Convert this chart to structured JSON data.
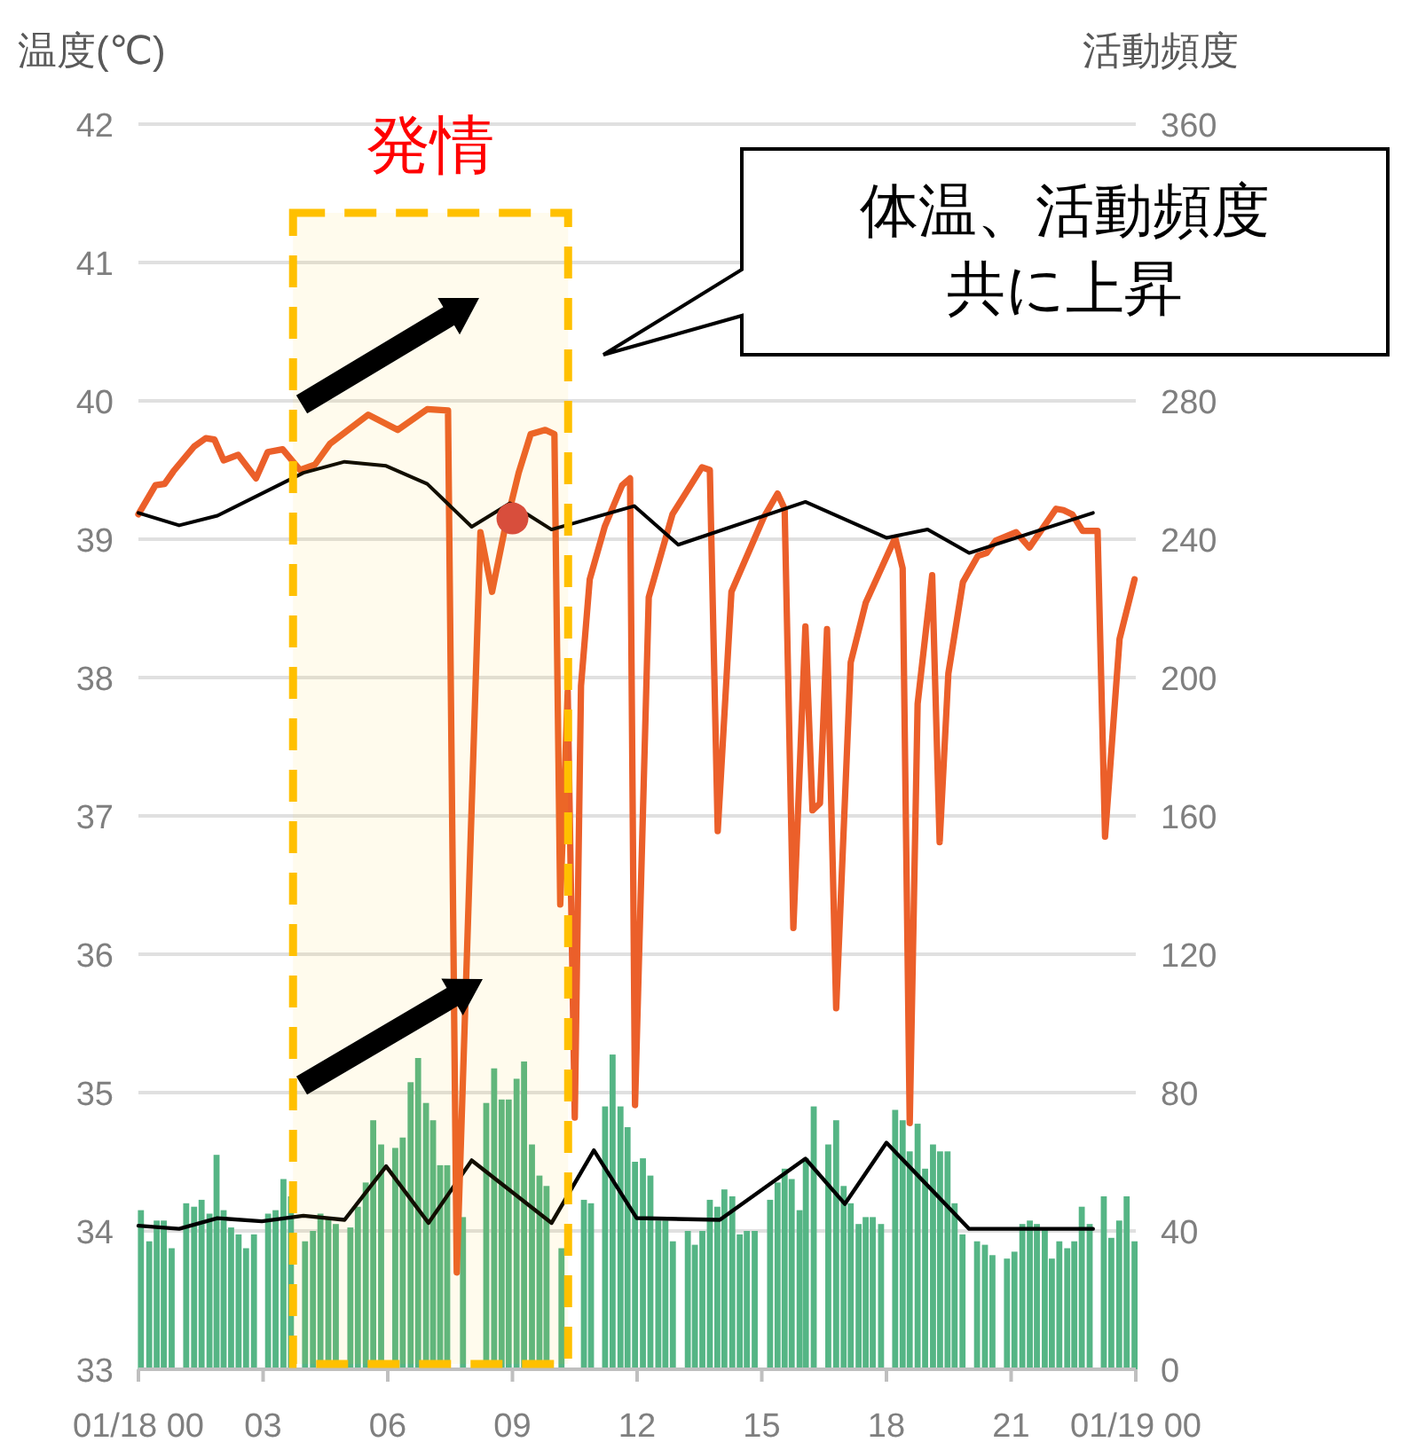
{
  "chart_data": {
    "type": "line",
    "ylabel": "温度(℃)",
    "y2label": "活動頻度",
    "xlim": [
      0,
      24
    ],
    "xticks": [
      {
        "value": 0,
        "label": "01/18 00"
      },
      {
        "value": 3,
        "label": "03"
      },
      {
        "value": 6,
        "label": "06"
      },
      {
        "value": 9,
        "label": "09"
      },
      {
        "value": 12,
        "label": "12"
      },
      {
        "value": 15,
        "label": "15"
      },
      {
        "value": 18,
        "label": "18"
      },
      {
        "value": 21,
        "label": "21"
      },
      {
        "value": 24,
        "label": "01/19 00"
      }
    ],
    "ylim": [
      33,
      42
    ],
    "yticks": [
      33,
      34,
      35,
      36,
      37,
      38,
      39,
      40,
      41,
      42
    ],
    "y2lim": [
      0,
      360
    ],
    "y2ticks": [
      0,
      40,
      80,
      120,
      160,
      200,
      240,
      280,
      360
    ],
    "grid": "y",
    "annotations": [
      "体温、活動頻度",
      "共に上昇"
    ],
    "bands": [
      {
        "axis": "x",
        "from": 3.72,
        "to": 10.34,
        "label": "発情",
        "color": "#ffc000"
      }
    ],
    "series": [
      {
        "type": "bar",
        "axis": "y2",
        "color": "#55b585",
        "x": [
          0.06,
          0.26,
          0.44,
          0.61,
          0.8,
          1.15,
          1.34,
          1.52,
          1.71,
          1.88,
          2.05,
          2.23,
          2.41,
          2.59,
          2.78,
          3.12,
          3.3,
          3.49,
          3.67,
          4.01,
          4.2,
          4.38,
          4.57,
          4.75,
          5.1,
          5.28,
          5.47,
          5.65,
          5.84,
          6.18,
          6.36,
          6.55,
          6.73,
          6.92,
          7.09,
          7.26,
          7.43,
          7.81,
          8.37,
          8.56,
          8.74,
          8.91,
          9.1,
          9.28,
          9.47,
          9.65,
          9.82,
          10.18,
          10.72,
          10.89,
          11.23,
          11.41,
          11.6,
          11.77,
          11.95,
          12.14,
          12.32,
          12.51,
          12.68,
          12.86,
          13.22,
          13.39,
          13.57,
          13.75,
          13.93,
          14.1,
          14.29,
          14.47,
          14.64,
          14.83,
          15.2,
          15.38,
          15.55,
          15.72,
          15.91,
          16.06,
          16.25,
          16.6,
          16.79,
          16.97,
          17.14,
          17.33,
          17.5,
          17.67,
          17.87,
          18.21,
          18.39,
          18.56,
          18.75,
          18.93,
          19.12,
          19.29,
          19.47,
          19.64,
          19.83,
          20.18,
          20.37,
          20.55,
          20.9,
          21.08,
          21.27,
          21.45,
          21.62,
          21.81,
          21.98,
          22.16,
          22.35,
          22.52,
          22.7,
          22.89,
          23.23,
          23.41,
          23.6,
          23.78,
          23.97
        ],
        "values": [
          46,
          37,
          43,
          43,
          35,
          48,
          47,
          49,
          45,
          62,
          46,
          41,
          39,
          35,
          39,
          45,
          46,
          55,
          50,
          37,
          40,
          45,
          44,
          42,
          41,
          47,
          54,
          72,
          65,
          64,
          67,
          83,
          90,
          77,
          72,
          59,
          59,
          44,
          77,
          87,
          78,
          78,
          84,
          89,
          65,
          56,
          53,
          35,
          49,
          48,
          76,
          91,
          76,
          70,
          60,
          61,
          56,
          43,
          43,
          37,
          40,
          36,
          40,
          49,
          47,
          52,
          50,
          39,
          40,
          40,
          49,
          54,
          58,
          55,
          46,
          61,
          76,
          65,
          72,
          53,
          48,
          42,
          44,
          44,
          42,
          75,
          72,
          63,
          71,
          58,
          65,
          63,
          63,
          48,
          39,
          37,
          36,
          33,
          32,
          34,
          42,
          43,
          42,
          41,
          32,
          37,
          35,
          37,
          47,
          42,
          50,
          38,
          43,
          50,
          37
        ]
      },
      {
        "axis": "y2",
        "color": "#000000",
        "x": [
          0,
          0.98,
          1.9,
          2.97,
          3.97,
          4.96,
          5.96,
          6.98,
          8.02,
          9.94,
          10.96,
          11.99,
          13.99,
          16.05,
          17.0,
          18.0,
          19.99,
          22.97
        ],
        "values": [
          41.5,
          40.6,
          43.7,
          42.8,
          44.4,
          43.2,
          58.7,
          42.3,
          60.4,
          42.3,
          63.3,
          43.7,
          43.2,
          60.9,
          47.8,
          65.5,
          40.6,
          40.6
        ]
      },
      {
        "color": "#eb5f2a",
        "x": [
          0,
          0.41,
          0.63,
          0.84,
          1.34,
          1.62,
          1.83,
          2.05,
          2.4,
          2.83,
          3.11,
          3.47,
          3.89,
          4.25,
          4.61,
          5.53,
          6.24,
          6.95,
          7.45,
          7.66,
          8.23,
          8.51,
          8.8,
          9.15,
          9.44,
          9.79,
          10.01,
          10.15,
          10.33,
          10.5,
          10.65,
          10.86,
          11.22,
          11.64,
          11.83,
          11.95,
          12.28,
          12.85,
          13.56,
          13.75,
          13.94,
          14.27,
          15.05,
          15.38,
          15.55,
          15.76,
          16.05,
          16.22,
          16.4,
          16.57,
          16.79,
          17.14,
          17.5,
          18.21,
          18.39,
          18.56,
          18.75,
          19.1,
          19.28,
          19.49,
          19.84,
          20.2,
          20.41,
          20.63,
          21.12,
          21.44,
          22.08,
          22.26,
          22.47,
          22.72,
          23.08,
          23.26,
          23.61,
          23.97
        ],
        "values": [
          39.18,
          39.39,
          39.4,
          39.49,
          39.67,
          39.73,
          39.72,
          39.57,
          39.61,
          39.44,
          39.63,
          39.65,
          39.5,
          39.54,
          39.69,
          39.9,
          39.79,
          39.94,
          39.93,
          33.7,
          39.05,
          38.62,
          39.05,
          39.48,
          39.76,
          39.79,
          39.76,
          36.36,
          37.9,
          34.82,
          37.94,
          38.71,
          39.09,
          39.39,
          39.44,
          34.91,
          38.58,
          39.18,
          39.52,
          39.5,
          36.89,
          38.62,
          39.16,
          39.33,
          39.22,
          36.19,
          38.37,
          37.04,
          37.09,
          38.35,
          35.61,
          38.11,
          38.54,
          39.01,
          38.79,
          34.78,
          37.81,
          38.74,
          36.81,
          38.03,
          38.69,
          38.88,
          38.9,
          38.99,
          39.05,
          38.94,
          39.22,
          39.21,
          39.18,
          39.06,
          39.06,
          36.85,
          38.28,
          38.71
        ]
      },
      {
        "color": "#000000",
        "x": [
          0,
          0.98,
          1.9,
          3.97,
          4.96,
          5.96,
          6.95,
          8.02,
          8.94,
          9.94,
          11.93,
          12.99,
          16.05,
          18.0,
          18.99,
          19.99,
          22.97
        ],
        "values": [
          39.19,
          39.1,
          39.17,
          39.48,
          39.56,
          39.53,
          39.4,
          39.09,
          39.26,
          39.07,
          39.24,
          38.96,
          39.27,
          39.01,
          39.07,
          38.9,
          39.19
        ]
      },
      {
        "type": "scatter",
        "color": "#d64541",
        "x": [
          9.0
        ],
        "values": [
          39.15
        ]
      }
    ]
  }
}
